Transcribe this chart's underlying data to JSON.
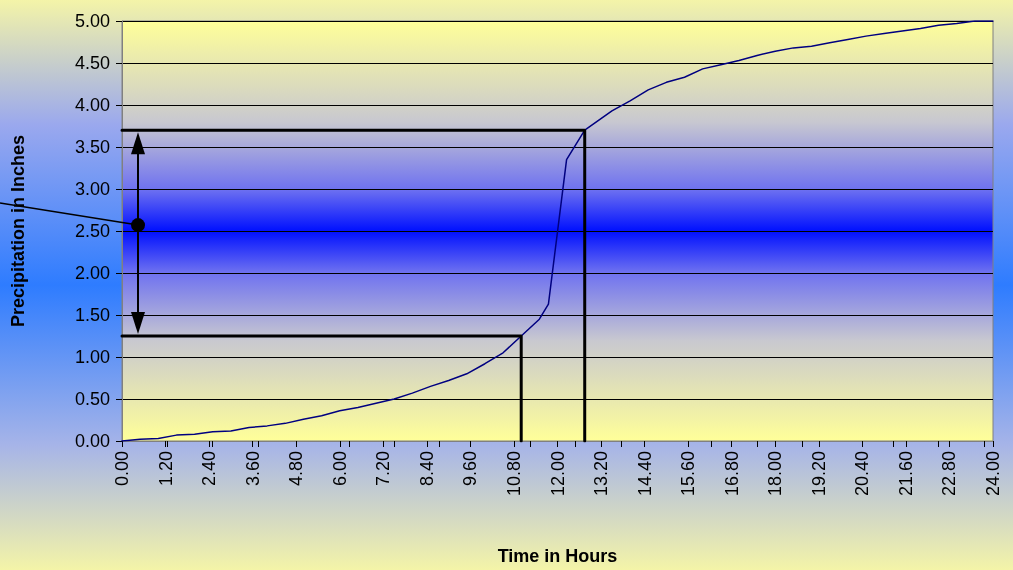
{
  "chart_data": {
    "type": "line",
    "xlabel": "Time in Hours",
    "ylabel": "Precipitation in Inches",
    "xlim": [
      0,
      24
    ],
    "ylim": [
      0,
      5
    ],
    "xticks": [
      {
        "value": 0,
        "label": "0.00"
      },
      {
        "value": 1.2,
        "label": "1.20"
      },
      {
        "value": 2.4,
        "label": "2.40"
      },
      {
        "value": 3.6,
        "label": "3.60"
      },
      {
        "value": 4.8,
        "label": "4.80"
      },
      {
        "value": 6,
        "label": "6.00"
      },
      {
        "value": 7.2,
        "label": "7.20"
      },
      {
        "value": 8.4,
        "label": "8.40"
      },
      {
        "value": 9.6,
        "label": "9.60"
      },
      {
        "value": 10.8,
        "label": "10.80"
      },
      {
        "value": 12,
        "label": "12.00"
      },
      {
        "value": 13.2,
        "label": "13.20"
      },
      {
        "value": 14.4,
        "label": "14.40"
      },
      {
        "value": 15.6,
        "label": "15.60"
      },
      {
        "value": 16.8,
        "label": "16.80"
      },
      {
        "value": 18,
        "label": "18.00"
      },
      {
        "value": 19.2,
        "label": "19.20"
      },
      {
        "value": 20.4,
        "label": "20.40"
      },
      {
        "value": 21.6,
        "label": "21.60"
      },
      {
        "value": 22.8,
        "label": "22.80"
      },
      {
        "value": 24,
        "label": "24.00"
      }
    ],
    "yticks": [
      {
        "value": 0,
        "label": "0.00"
      },
      {
        "value": 0.5,
        "label": "0.50"
      },
      {
        "value": 1,
        "label": "1.00"
      },
      {
        "value": 1.5,
        "label": "1.50"
      },
      {
        "value": 2,
        "label": "2.00"
      },
      {
        "value": 2.5,
        "label": "2.50"
      },
      {
        "value": 3,
        "label": "3.00"
      },
      {
        "value": 3.5,
        "label": "3.50"
      },
      {
        "value": 4,
        "label": "4.00"
      },
      {
        "value": 4.5,
        "label": "4.50"
      },
      {
        "value": 5,
        "label": "5.00"
      }
    ],
    "grid": "y",
    "marker": "none",
    "line_style": "solid",
    "series": [
      {
        "color": "#000080",
        "x": [
          0,
          0.5,
          1,
          1.5,
          2,
          2.5,
          3,
          3.5,
          4,
          4.5,
          5,
          5.5,
          6,
          6.5,
          7,
          7.5,
          8,
          8.5,
          9,
          9.5,
          10,
          10.5,
          11,
          11.5,
          11.75,
          12.25,
          12.75,
          13.5,
          14,
          14.5,
          15,
          15.5,
          16,
          16.5,
          17,
          17.5,
          18,
          18.5,
          19,
          19.5,
          20,
          20.5,
          21,
          21.5,
          22,
          22.5,
          23,
          23.5,
          24
        ],
        "values": [
          0,
          0.02,
          0.03,
          0.07,
          0.08,
          0.11,
          0.12,
          0.16,
          0.18,
          0.21,
          0.26,
          0.3,
          0.36,
          0.4,
          0.45,
          0.5,
          0.57,
          0.65,
          0.72,
          0.8,
          0.92,
          1.05,
          1.25,
          1.45,
          1.63,
          3.35,
          3.7,
          3.93,
          4.05,
          4.18,
          4.27,
          4.33,
          4.43,
          4.48,
          4.53,
          4.59,
          4.64,
          4.68,
          4.7,
          4.74,
          4.78,
          4.82,
          4.85,
          4.88,
          4.91,
          4.95,
          4.97,
          5,
          5
        ]
      },
      {
        "color": "#000000",
        "x": [
          0,
          12.75,
          12.75
        ],
        "values": [
          3.7,
          3.7,
          0
        ]
      },
      {
        "color": "#000000",
        "x": [
          0,
          11,
          11
        ],
        "values": [
          1.25,
          1.25,
          0
        ]
      }
    ]
  }
}
